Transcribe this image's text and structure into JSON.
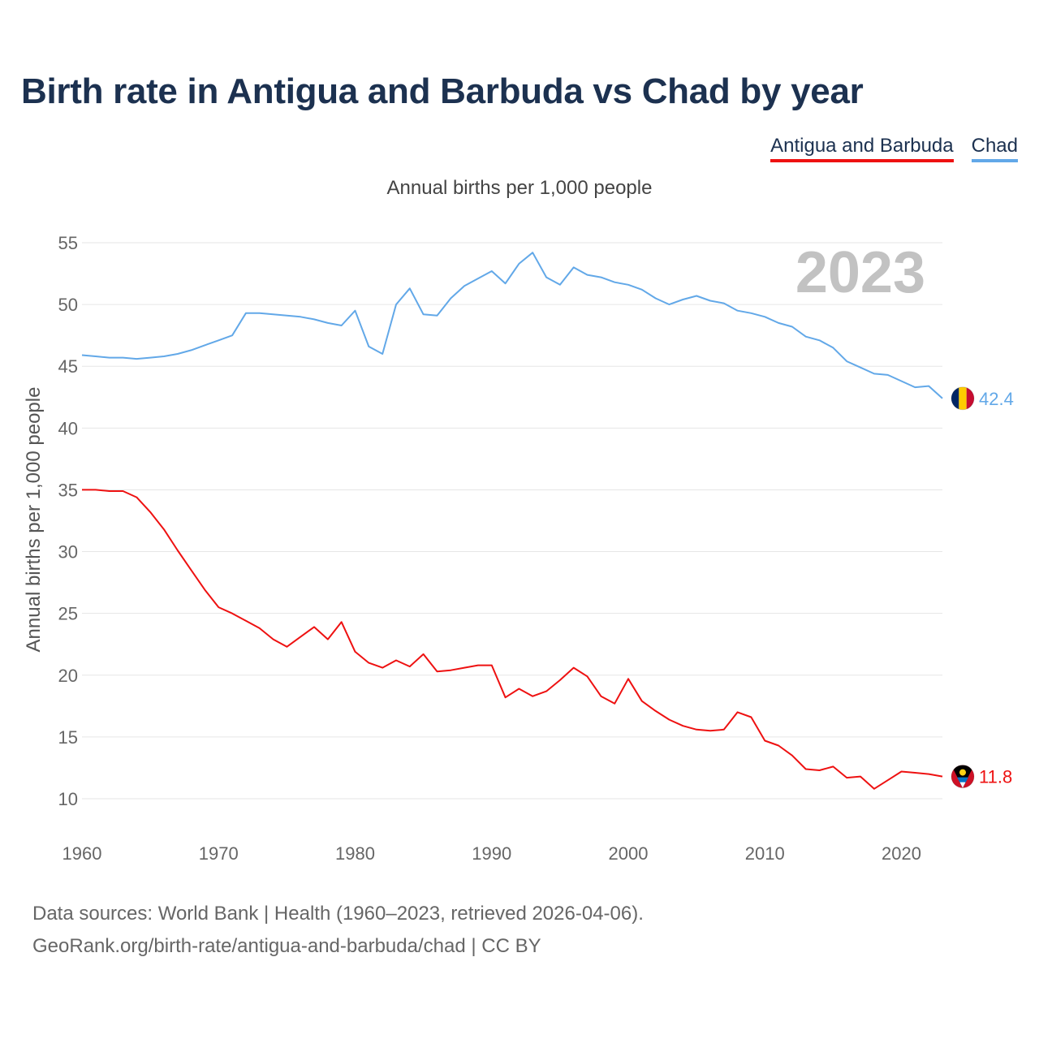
{
  "title": "Birth rate in Antigua and Barbuda vs Chad by year",
  "legend": [
    {
      "label": "Antigua and Barbuda",
      "color": "#ee1111"
    },
    {
      "label": "Chad",
      "color": "#62a8e8"
    }
  ],
  "subtitle": "Annual births per 1,000 people",
  "year_label": "2023",
  "footer": {
    "line1": "Data sources: World Bank | Health (1960–2023, retrieved 2026-04-06).",
    "line2": "GeoRank.org/birth-rate/antigua-and-barbuda/chad | CC BY"
  },
  "chart_data": {
    "type": "line",
    "title": "Birth rate in Antigua and Barbuda vs Chad by year",
    "xlabel": "",
    "ylabel": "Annual births per 1,000 people",
    "xlim": [
      1960,
      2023
    ],
    "ylim": [
      10,
      55
    ],
    "x_ticks": [
      1960,
      1970,
      1980,
      1990,
      2000,
      2010,
      2020
    ],
    "y_ticks": [
      10,
      15,
      20,
      25,
      30,
      35,
      40,
      45,
      50,
      55
    ],
    "grid": true,
    "x": [
      1960,
      1961,
      1962,
      1963,
      1964,
      1965,
      1966,
      1967,
      1968,
      1969,
      1970,
      1971,
      1972,
      1973,
      1974,
      1975,
      1976,
      1977,
      1978,
      1979,
      1980,
      1981,
      1982,
      1983,
      1984,
      1985,
      1986,
      1987,
      1988,
      1989,
      1990,
      1991,
      1992,
      1993,
      1994,
      1995,
      1996,
      1997,
      1998,
      1999,
      2000,
      2001,
      2002,
      2003,
      2004,
      2005,
      2006,
      2007,
      2008,
      2009,
      2010,
      2011,
      2012,
      2013,
      2014,
      2015,
      2016,
      2017,
      2018,
      2019,
      2020,
      2021,
      2022,
      2023
    ],
    "series": [
      {
        "name": "Chad",
        "color": "#62a8e8",
        "end_label": "42.4",
        "values": [
          45.9,
          45.8,
          45.7,
          45.7,
          45.6,
          45.7,
          45.8,
          46.0,
          46.3,
          46.7,
          47.1,
          47.5,
          49.3,
          49.3,
          49.2,
          49.1,
          49.0,
          48.8,
          48.5,
          48.3,
          49.5,
          46.6,
          46.0,
          50.0,
          51.3,
          49.2,
          49.1,
          50.5,
          51.5,
          52.1,
          52.7,
          51.7,
          53.3,
          54.2,
          52.2,
          51.6,
          53.0,
          52.4,
          52.2,
          51.8,
          51.6,
          51.2,
          50.5,
          50.0,
          50.4,
          50.7,
          50.3,
          50.1,
          49.5,
          49.3,
          49.0,
          48.5,
          48.2,
          47.4,
          47.1,
          46.5,
          45.4,
          44.9,
          44.4,
          44.3,
          43.8,
          43.3,
          43.4,
          42.4
        ]
      },
      {
        "name": "Antigua and Barbuda",
        "color": "#ee1111",
        "end_label": "11.8",
        "values": [
          35.0,
          35.0,
          34.9,
          34.9,
          34.4,
          33.2,
          31.8,
          30.1,
          28.5,
          26.9,
          25.5,
          25.0,
          24.4,
          23.8,
          22.9,
          22.3,
          23.1,
          23.9,
          22.9,
          24.3,
          21.9,
          21.0,
          20.6,
          21.2,
          20.7,
          21.7,
          20.3,
          20.4,
          20.6,
          20.8,
          20.8,
          18.2,
          18.9,
          18.3,
          18.7,
          19.6,
          20.6,
          19.9,
          18.3,
          17.7,
          19.7,
          17.9,
          17.1,
          16.4,
          15.9,
          15.6,
          15.5,
          15.6,
          17.0,
          16.6,
          14.7,
          14.3,
          13.5,
          12.4,
          12.3,
          12.6,
          11.7,
          11.8,
          10.8,
          11.5,
          12.2,
          12.1,
          12.0,
          11.8
        ]
      }
    ]
  }
}
